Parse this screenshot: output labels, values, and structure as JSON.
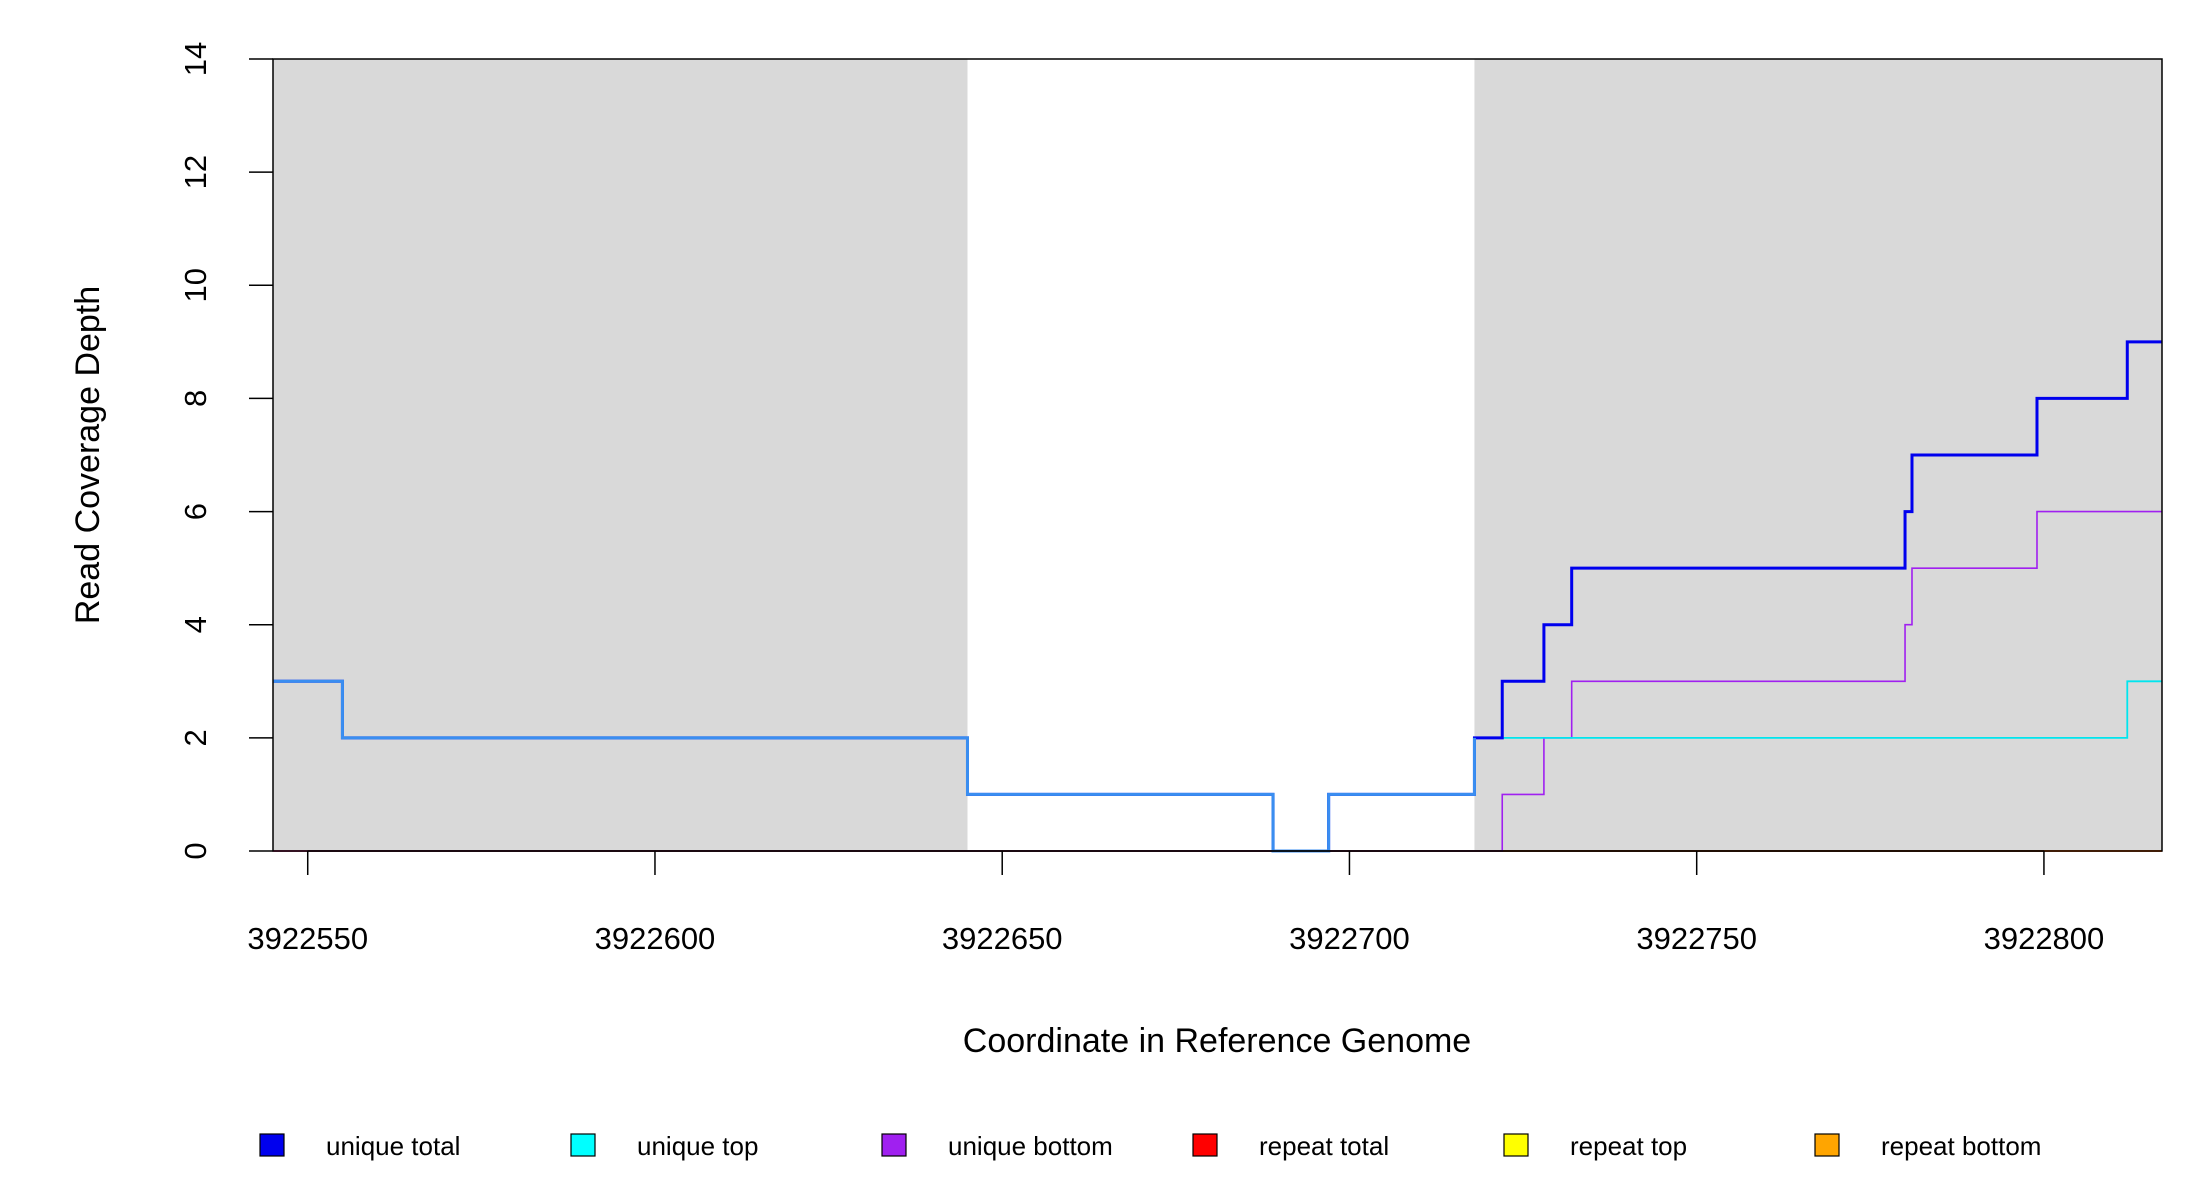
{
  "chart_data": {
    "type": "line",
    "step": true,
    "xlabel": "Coordinate in Reference Genome",
    "ylabel": "Read Coverage Depth",
    "xlim": [
      3922545,
      3922817
    ],
    "ylim": [
      0,
      14
    ],
    "x_ticks": [
      3922550,
      3922600,
      3922650,
      3922700,
      3922750,
      3922800
    ],
    "x_tick_labels": [
      "3922550",
      "3922600",
      "3922650",
      "3922700",
      "3922750",
      "3922800"
    ],
    "y_ticks": [
      0,
      2,
      4,
      6,
      8,
      10,
      12,
      14
    ],
    "y_tick_labels": [
      "0",
      "2",
      "4",
      "6",
      "8",
      "10",
      "12",
      "14"
    ],
    "shaded_regions": [
      {
        "x": [
          3922545,
          3922645
        ],
        "color": "#d9d9d9"
      },
      {
        "x": [
          3922718,
          3922817
        ],
        "color": "#d9d9d9"
      }
    ],
    "series": [
      {
        "name": "unique total",
        "color": "#0000ee",
        "points": [
          [
            3922545,
            3
          ],
          [
            3922555,
            3
          ],
          [
            3922555,
            2
          ],
          [
            3922645,
            2
          ],
          [
            3922645,
            1
          ],
          [
            3922689,
            1
          ],
          [
            3922689,
            0
          ],
          [
            3922697,
            0
          ],
          [
            3922697,
            1
          ],
          [
            3922718,
            1
          ],
          [
            3922718,
            2
          ],
          [
            3922722,
            2
          ],
          [
            3922722,
            3
          ],
          [
            3922728,
            3
          ],
          [
            3922728,
            4
          ],
          [
            3922732,
            4
          ],
          [
            3922732,
            5
          ],
          [
            3922780,
            5
          ],
          [
            3922780,
            6
          ],
          [
            3922781,
            6
          ],
          [
            3922781,
            7
          ],
          [
            3922799,
            7
          ],
          [
            3922799,
            8
          ],
          [
            3922812,
            8
          ],
          [
            3922812,
            9
          ],
          [
            3922817,
            9
          ]
        ]
      },
      {
        "name": "unique top",
        "color": "#00e5ee",
        "points": [
          [
            3922545,
            3
          ],
          [
            3922555,
            3
          ],
          [
            3922555,
            2
          ],
          [
            3922645,
            2
          ],
          [
            3922645,
            1
          ],
          [
            3922689,
            1
          ],
          [
            3922689,
            0
          ],
          [
            3922697,
            0
          ],
          [
            3922697,
            1
          ],
          [
            3922718,
            1
          ],
          [
            3922718,
            2
          ],
          [
            3922812,
            2
          ],
          [
            3922812,
            3
          ],
          [
            3922817,
            3
          ]
        ]
      },
      {
        "name": "unique bottom",
        "color": "#a020f0",
        "points": [
          [
            3922545,
            0
          ],
          [
            3922722,
            0
          ],
          [
            3922722,
            1
          ],
          [
            3922728,
            1
          ],
          [
            3922728,
            2
          ],
          [
            3922732,
            2
          ],
          [
            3922732,
            3
          ],
          [
            3922780,
            3
          ],
          [
            3922780,
            4
          ],
          [
            3922781,
            4
          ],
          [
            3922781,
            5
          ],
          [
            3922799,
            5
          ],
          [
            3922799,
            6
          ],
          [
            3922817,
            6
          ]
        ]
      },
      {
        "name": "repeat total",
        "color": "#ff0000",
        "points": [
          [
            3922545,
            0
          ],
          [
            3922817,
            0
          ]
        ]
      },
      {
        "name": "repeat top",
        "color": "#ffff00",
        "points": [
          [
            3922545,
            0
          ],
          [
            3922817,
            0
          ]
        ]
      },
      {
        "name": "repeat bottom",
        "color": "#ffa500",
        "points": [
          [
            3922545,
            0
          ],
          [
            3922817,
            0
          ]
        ]
      }
    ],
    "legend": {
      "position": "bottom",
      "items": [
        {
          "label": "unique total",
          "color": "#0000ee"
        },
        {
          "label": "unique top",
          "color": "#00ffff"
        },
        {
          "label": "unique bottom",
          "color": "#a020f0"
        },
        {
          "label": "repeat total",
          "color": "#ff0000"
        },
        {
          "label": "repeat top",
          "color": "#ffff00"
        },
        {
          "label": "repeat bottom",
          "color": "#ffa500"
        }
      ]
    },
    "grid": false
  }
}
